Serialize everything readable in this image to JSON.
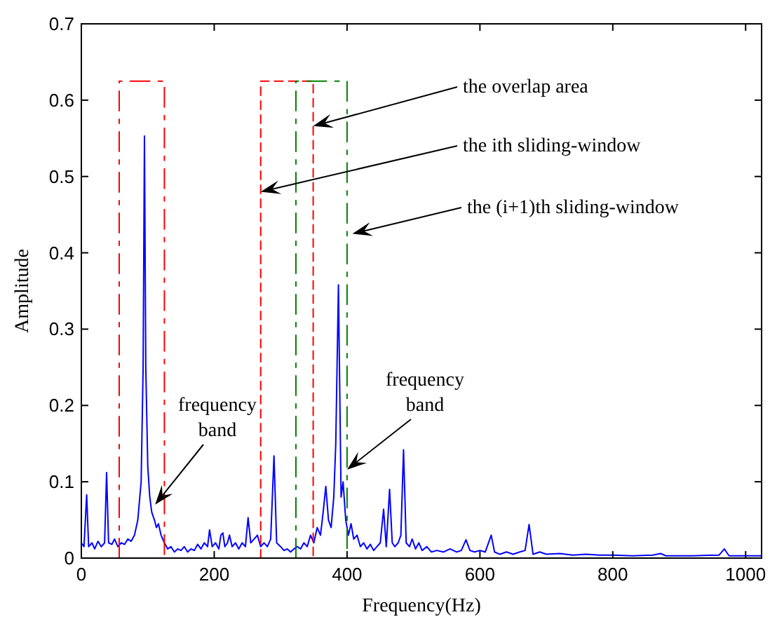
{
  "chart_data": {
    "type": "line",
    "xlabel": "Frequency(Hz)",
    "ylabel": "Amplitude",
    "xlim": [
      0,
      1024
    ],
    "ylim": [
      0,
      0.7
    ],
    "xticks": [
      0,
      200,
      400,
      600,
      800,
      1000
    ],
    "yticks": [
      0,
      0.1,
      0.2,
      0.3,
      0.4,
      0.5,
      0.6,
      0.7
    ],
    "grid": false,
    "marker": "none",
    "series": [
      {
        "color": "#0000ff",
        "line_style": "solid",
        "x": [
          0,
          4,
          8,
          11,
          16,
          20,
          25,
          30,
          35,
          38,
          41,
          46,
          50,
          55,
          60,
          65,
          70,
          75,
          80,
          85,
          90,
          93,
          95,
          97,
          100,
          103,
          106,
          110,
          113,
          116,
          120,
          125,
          130,
          135,
          140,
          145,
          150,
          155,
          160,
          165,
          170,
          175,
          180,
          185,
          190,
          193,
          197,
          202,
          207,
          210,
          213,
          216,
          220,
          223,
          227,
          232,
          237,
          242,
          247,
          251,
          255,
          260,
          265,
          270,
          275,
          280,
          285,
          290,
          294,
          300,
          305,
          310,
          315,
          320,
          325,
          330,
          335,
          340,
          345,
          350,
          355,
          360,
          364,
          368,
          372,
          376,
          380,
          383,
          387,
          391,
          394,
          398,
          402,
          406,
          410,
          415,
          420,
          425,
          430,
          435,
          440,
          445,
          450,
          455,
          459,
          464,
          468,
          472,
          477,
          481,
          485,
          489,
          494,
          498,
          503,
          508,
          513,
          520,
          527,
          535,
          545,
          555,
          565,
          572,
          579,
          585,
          592,
          600,
          608,
          617,
          622,
          630,
          640,
          650,
          660,
          668,
          674,
          680,
          690,
          700,
          720,
          740,
          760,
          780,
          800,
          830,
          860,
          872,
          880,
          920,
          960,
          968,
          975,
          1000,
          1024
        ],
        "values": [
          0.02,
          0.015,
          0.083,
          0.015,
          0.02,
          0.012,
          0.022,
          0.015,
          0.02,
          0.112,
          0.02,
          0.018,
          0.025,
          0.015,
          0.02,
          0.018,
          0.025,
          0.022,
          0.03,
          0.05,
          0.1,
          0.25,
          0.553,
          0.25,
          0.12,
          0.08,
          0.06,
          0.05,
          0.04,
          0.045,
          0.03,
          0.02,
          0.012,
          0.015,
          0.008,
          0.012,
          0.01,
          0.015,
          0.008,
          0.012,
          0.01,
          0.018,
          0.012,
          0.02,
          0.015,
          0.037,
          0.015,
          0.02,
          0.012,
          0.03,
          0.033,
          0.015,
          0.02,
          0.03,
          0.015,
          0.02,
          0.012,
          0.02,
          0.015,
          0.053,
          0.02,
          0.025,
          0.03,
          0.015,
          0.02,
          0.015,
          0.025,
          0.134,
          0.02,
          0.015,
          0.01,
          0.012,
          0.008,
          0.012,
          0.015,
          0.012,
          0.02,
          0.015,
          0.03,
          0.02,
          0.04,
          0.03,
          0.06,
          0.094,
          0.05,
          0.04,
          0.08,
          0.15,
          0.358,
          0.08,
          0.1,
          0.05,
          0.03,
          0.045,
          0.025,
          0.03,
          0.015,
          0.02,
          0.012,
          0.018,
          0.01,
          0.015,
          0.02,
          0.064,
          0.015,
          0.09,
          0.02,
          0.015,
          0.02,
          0.03,
          0.142,
          0.02,
          0.015,
          0.025,
          0.012,
          0.02,
          0.01,
          0.015,
          0.008,
          0.01,
          0.008,
          0.012,
          0.008,
          0.01,
          0.024,
          0.01,
          0.008,
          0.01,
          0.008,
          0.03,
          0.008,
          0.005,
          0.008,
          0.005,
          0.008,
          0.01,
          0.044,
          0.005,
          0.008,
          0.005,
          0.006,
          0.004,
          0.005,
          0.004,
          0.004,
          0.003,
          0.004,
          0.006,
          0.003,
          0.003,
          0.004,
          0.012,
          0.003,
          0.003,
          0.003
        ]
      },
      {
        "color": "#ff0000",
        "line_style": "dashed",
        "x": [
          57,
          57,
          125,
          125
        ],
        "values": [
          0,
          0.625,
          0.625,
          0
        ]
      },
      {
        "color": "#ff0000",
        "line_style": "dotted",
        "x": [
          270,
          270,
          349,
          349
        ],
        "values": [
          0,
          0.625,
          0.625,
          0
        ]
      },
      {
        "color": "#008000",
        "line_style": "dashed",
        "x": [
          323,
          323,
          400,
          400
        ],
        "values": [
          0,
          0.625,
          0.625,
          0
        ]
      }
    ],
    "annotations": [
      {
        "text": "the overlap area",
        "x": 349,
        "y": 0.566
      },
      {
        "text": "the ith sliding-window",
        "x": 270,
        "y": 0.48
      },
      {
        "text": "the (i+1)th sliding-window",
        "x": 408,
        "y": 0.425
      },
      {
        "text": "frequency band",
        "x": 111,
        "y": 0.07
      },
      {
        "text": "frequency band",
        "x": 400,
        "y": 0.116
      }
    ]
  }
}
